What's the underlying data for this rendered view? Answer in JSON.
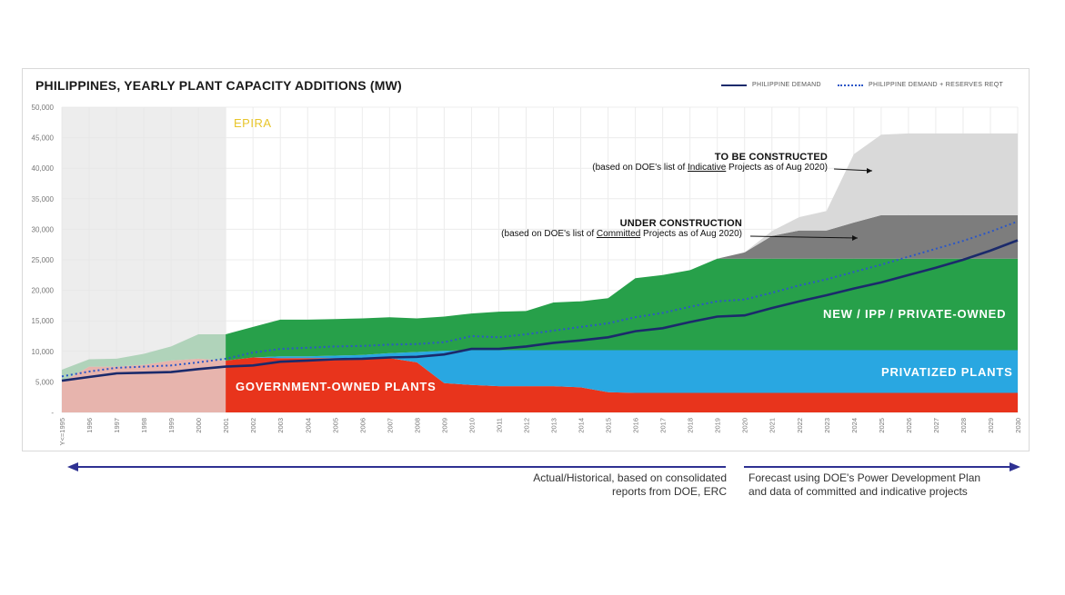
{
  "chart_data": {
    "type": "area",
    "title": "PHILIPPINES, YEARLY PLANT CAPACITY ADDITIONS (MW)",
    "categories": [
      "Y<=1995",
      "1996",
      "1997",
      "1998",
      "1999",
      "2000",
      "2001",
      "2002",
      "2003",
      "2004",
      "2005",
      "2006",
      "2007",
      "2008",
      "2009",
      "2010",
      "2011",
      "2012",
      "2013",
      "2014",
      "2015",
      "2016",
      "2017",
      "2018",
      "2019",
      "2020",
      "2021",
      "2022",
      "2023",
      "2024",
      "2025",
      "2026",
      "2027",
      "2028",
      "2029",
      "2030"
    ],
    "ylim": [
      0,
      50000
    ],
    "yticks": [
      "-",
      "5,000",
      "10,000",
      "15,000",
      "20,000",
      "25,000",
      "30,000",
      "35,000",
      "40,000",
      "45,000",
      "50,000"
    ],
    "grid": true,
    "legend_position": "top-right",
    "series": [
      {
        "name": "GOVERNMENT-OWNED PLANTS",
        "kind": "stacked-area",
        "color": "#e8341c",
        "values": [
          5000,
          7500,
          7500,
          7800,
          8500,
          8800,
          8500,
          9000,
          8900,
          8900,
          8900,
          8900,
          8900,
          8200,
          4800,
          4500,
          4300,
          4300,
          4300,
          4100,
          3300,
          3200,
          3200,
          3200,
          3200,
          3200,
          3200,
          3200,
          3200,
          3200,
          3200,
          3200,
          3200,
          3200,
          3200,
          3200
        ]
      },
      {
        "name": "PRIVATIZED PLANTS",
        "kind": "stacked-area",
        "color": "#29a7e1",
        "values": [
          0,
          0,
          0,
          0,
          0,
          0,
          0,
          0,
          300,
          300,
          400,
          500,
          800,
          1700,
          5300,
          5700,
          5900,
          5900,
          5900,
          6100,
          6900,
          7000,
          7000,
          7000,
          7000,
          7000,
          7000,
          7000,
          7000,
          7000,
          7000,
          7000,
          7000,
          7000,
          7000,
          7000
        ]
      },
      {
        "name": "NEW / IPP / PRIVATE-OWNED",
        "kind": "stacked-area",
        "color": "#27a04a",
        "values": [
          2000,
          1200,
          1300,
          1800,
          2300,
          4000,
          4300,
          5000,
          6000,
          6000,
          6000,
          6000,
          5900,
          5500,
          5600,
          6000,
          6300,
          6400,
          7800,
          8000,
          8500,
          11800,
          12300,
          13100,
          15000,
          15000,
          15000,
          15000,
          15000,
          15000,
          15000,
          15000,
          15000,
          15000,
          15000,
          15000
        ]
      },
      {
        "name": "UNDER CONSTRUCTION",
        "kind": "stacked-area",
        "color": "#7d7d7d",
        "values": [
          0,
          0,
          0,
          0,
          0,
          0,
          0,
          0,
          0,
          0,
          0,
          0,
          0,
          0,
          0,
          0,
          0,
          0,
          0,
          0,
          0,
          0,
          0,
          0,
          0,
          1000,
          3700,
          4600,
          4600,
          5900,
          7100,
          7100,
          7100,
          7100,
          7100,
          7100
        ]
      },
      {
        "name": "TO BE CONSTRUCTED",
        "kind": "stacked-area",
        "color": "#d9d9d9",
        "values": [
          0,
          0,
          0,
          0,
          0,
          0,
          0,
          0,
          0,
          0,
          0,
          0,
          0,
          0,
          0,
          0,
          0,
          0,
          0,
          0,
          0,
          0,
          0,
          0,
          0,
          0,
          800,
          2200,
          3200,
          11200,
          13200,
          13400,
          13400,
          13400,
          13400,
          13400
        ]
      },
      {
        "name": "PHILIPPINE DEMAND",
        "kind": "line",
        "style": "solid",
        "color": "#1b2a6b",
        "values": [
          5200,
          5800,
          6400,
          6500,
          6600,
          7100,
          7500,
          7700,
          8300,
          8500,
          8700,
          8800,
          9000,
          9100,
          9500,
          10400,
          10400,
          10800,
          11400,
          11800,
          12300,
          13300,
          13800,
          14800,
          15700,
          15900,
          17100,
          18200,
          19200,
          20300,
          21300,
          22500,
          23700,
          25000,
          26500,
          28200
        ]
      },
      {
        "name": "PHILIPPINE DEMAND + RESERVES REQT",
        "kind": "line",
        "style": "dotted",
        "color": "#2b57c8",
        "values": [
          5900,
          6700,
          7300,
          7500,
          7700,
          8200,
          8800,
          9800,
          10400,
          10600,
          10800,
          10900,
          11100,
          11200,
          11500,
          12500,
          12300,
          12800,
          13400,
          14000,
          14600,
          15600,
          16300,
          17300,
          18200,
          18500,
          19600,
          20800,
          21800,
          23000,
          24200,
          25500,
          26800,
          28100,
          29600,
          31300
        ]
      }
    ],
    "shaded_periods": [
      {
        "label": "EPIRA",
        "from": "Y<=1995",
        "to": "2001",
        "color": "#e6e6e6",
        "label_color": "#e8c52a"
      }
    ]
  },
  "legend": {
    "demand": "PHILIPPINE DEMAND",
    "demand_reserves": "PHILIPPINE DEMAND + RESERVES REQT"
  },
  "annotations": {
    "to_be_constructed": {
      "head": "TO BE CONSTRUCTED",
      "sub_pre": "(based on DOE's list of ",
      "sub_u": "Indicative",
      "sub_post": " Projects as of Aug 2020)"
    },
    "under_construction": {
      "head": "UNDER CONSTRUCTION",
      "sub_pre": "(based on DOE's list of ",
      "sub_u": "Committed",
      "sub_post": " Projects as of Aug 2020)"
    }
  },
  "region_labels": {
    "government": "GOVERNMENT-OWNED PLANTS",
    "privatized": "PRIVATIZED PLANTS",
    "new_ipp": "NEW / IPP / PRIVATE-OWNED",
    "epira": "EPIRA"
  },
  "captions": {
    "historical": "Actual/Historical, based on consolidated reports from DOE, ERC",
    "forecast": "Forecast using DOE's Power Development Plan and data of committed and indicative projects"
  },
  "colors": {
    "arrow": "#2e3192",
    "grid": "#ececec",
    "axis_text": "#777777"
  }
}
